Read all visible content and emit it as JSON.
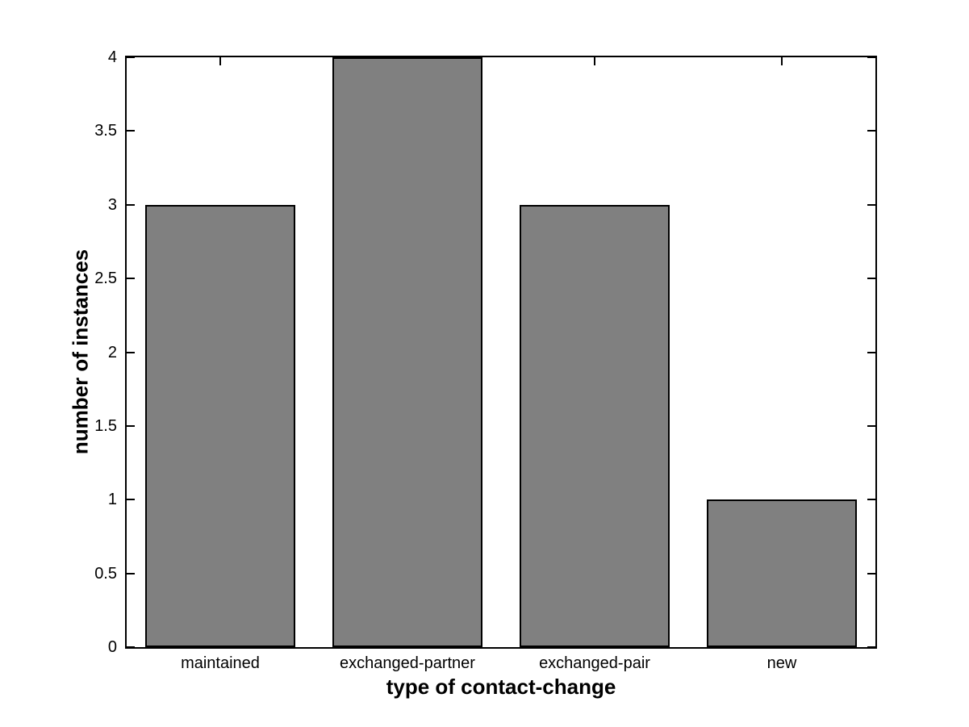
{
  "chart_data": {
    "type": "bar",
    "title": "",
    "categories": [
      "maintained",
      "exchanged-partner",
      "exchanged-pair",
      "new"
    ],
    "values": [
      3,
      4,
      3,
      1
    ],
    "xlabel": "type of contact-change",
    "ylabel": "number of instances",
    "ylim": [
      0,
      4
    ],
    "yticks": [
      0,
      0.5,
      1,
      1.5,
      2,
      2.5,
      3,
      3.5,
      4
    ],
    "ytick_labels": [
      "0",
      "0.5",
      "1",
      "1.5",
      "2",
      "2.5",
      "3",
      "3.5",
      "4"
    ],
    "bar_color": "#808080",
    "bar_edge_color": "#000000",
    "bar_width_fraction": 0.8,
    "grid": false,
    "legend": "none",
    "background": "#ffffff",
    "axis_color": "#000000"
  }
}
